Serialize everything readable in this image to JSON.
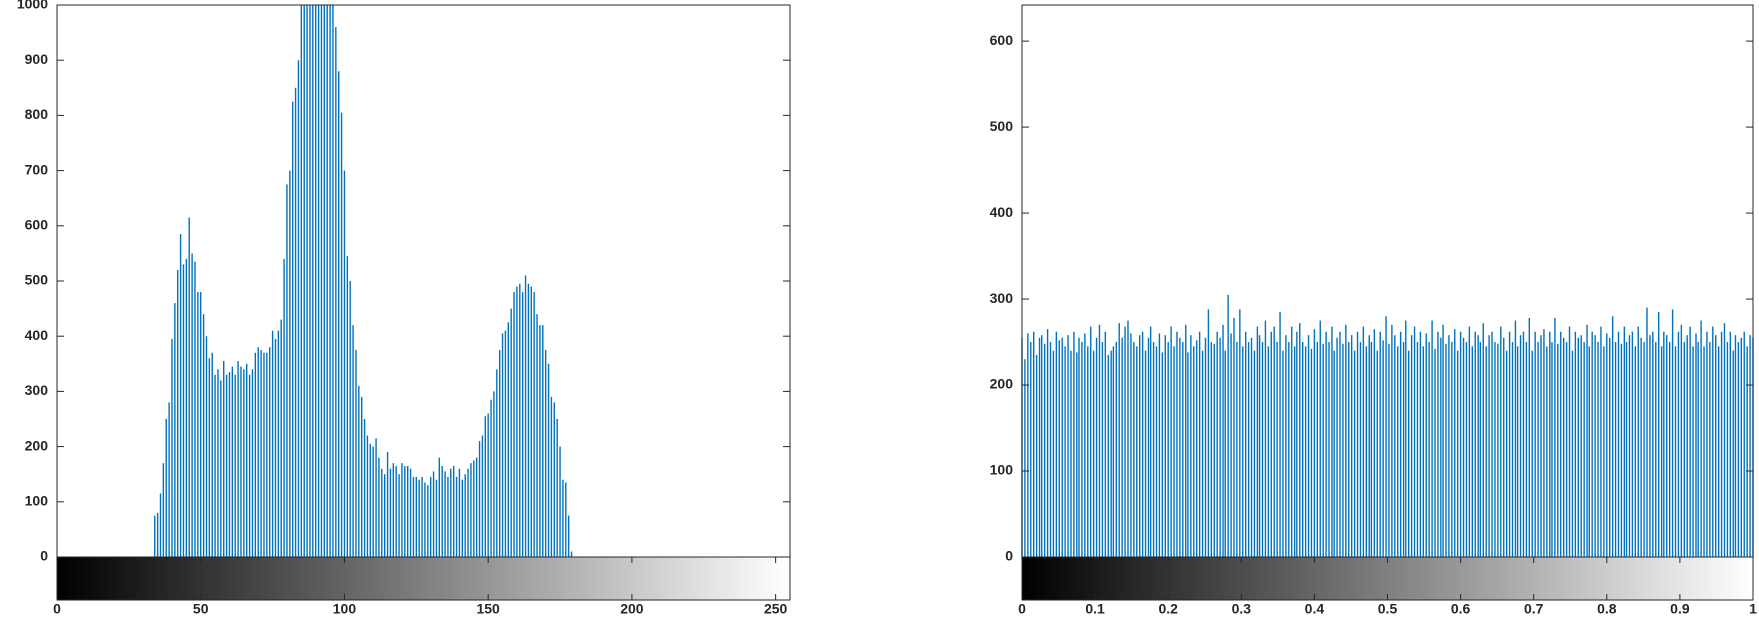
{
  "chart_data": [
    {
      "type": "bar",
      "color": "#0072bd",
      "colorbar": true,
      "xlim": [
        0,
        255
      ],
      "ylim": [
        0,
        1000
      ],
      "xticks": [
        0,
        50,
        100,
        150,
        200,
        250
      ],
      "yticks": [
        0,
        100,
        200,
        300,
        400,
        500,
        600,
        700,
        800,
        900,
        1000
      ],
      "x": [
        0,
        1,
        2,
        3,
        4,
        5,
        6,
        7,
        8,
        9,
        10,
        11,
        12,
        13,
        14,
        15,
        16,
        17,
        18,
        19,
        20,
        21,
        22,
        23,
        24,
        25,
        26,
        27,
        28,
        29,
        30,
        31,
        32,
        33,
        34,
        35,
        36,
        37,
        38,
        39,
        40,
        41,
        42,
        43,
        44,
        45,
        46,
        47,
        48,
        49,
        50,
        51,
        52,
        53,
        54,
        55,
        56,
        57,
        58,
        59,
        60,
        61,
        62,
        63,
        64,
        65,
        66,
        67,
        68,
        69,
        70,
        71,
        72,
        73,
        74,
        75,
        76,
        77,
        78,
        79,
        80,
        81,
        82,
        83,
        84,
        85,
        86,
        87,
        88,
        89,
        90,
        91,
        92,
        93,
        94,
        95,
        96,
        97,
        98,
        99,
        100,
        101,
        102,
        103,
        104,
        105,
        106,
        107,
        108,
        109,
        110,
        111,
        112,
        113,
        114,
        115,
        116,
        117,
        118,
        119,
        120,
        121,
        122,
        123,
        124,
        125,
        126,
        127,
        128,
        129,
        130,
        131,
        132,
        133,
        134,
        135,
        136,
        137,
        138,
        139,
        140,
        141,
        142,
        143,
        144,
        145,
        146,
        147,
        148,
        149,
        150,
        151,
        152,
        153,
        154,
        155,
        156,
        157,
        158,
        159,
        160,
        161,
        162,
        163,
        164,
        165,
        166,
        167,
        168,
        169,
        170,
        171,
        172,
        173,
        174,
        175,
        176,
        177,
        178,
        179,
        180,
        181,
        182,
        183,
        184,
        185,
        186,
        187,
        188,
        189,
        190,
        191,
        192,
        193,
        194,
        195,
        196,
        197,
        198,
        199,
        200,
        201,
        202,
        203,
        204,
        205,
        206,
        207,
        208,
        209,
        210,
        211,
        212,
        213,
        214,
        215,
        216,
        217,
        218,
        219,
        220,
        221,
        222,
        223,
        224,
        225,
        226,
        227,
        228,
        229,
        230,
        231,
        232,
        233,
        234,
        235,
        236,
        237,
        238,
        239,
        240,
        241,
        242,
        243,
        244,
        245,
        246,
        247,
        248,
        249,
        250,
        251,
        252,
        253,
        254,
        255
      ],
      "values": [
        0,
        0,
        0,
        0,
        0,
        0,
        0,
        0,
        0,
        0,
        0,
        0,
        0,
        0,
        0,
        0,
        0,
        0,
        0,
        0,
        0,
        0,
        0,
        0,
        0,
        0,
        0,
        0,
        0,
        0,
        0,
        0,
        0,
        0,
        75,
        80,
        115,
        170,
        250,
        280,
        395,
        460,
        520,
        585,
        530,
        540,
        615,
        550,
        535,
        480,
        480,
        440,
        400,
        360,
        370,
        330,
        340,
        320,
        355,
        330,
        335,
        345,
        330,
        355,
        345,
        340,
        350,
        330,
        340,
        370,
        380,
        375,
        370,
        370,
        380,
        410,
        395,
        410,
        430,
        540,
        675,
        700,
        825,
        850,
        900,
        1000,
        1000,
        1000,
        1000,
        1000,
        1000,
        1000,
        1000,
        1000,
        1000,
        1000,
        1000,
        960,
        880,
        805,
        700,
        545,
        500,
        420,
        375,
        310,
        290,
        250,
        220,
        205,
        200,
        215,
        180,
        160,
        150,
        190,
        160,
        170,
        165,
        150,
        170,
        165,
        165,
        160,
        145,
        145,
        140,
        145,
        135,
        130,
        145,
        155,
        140,
        180,
        165,
        155,
        145,
        160,
        165,
        145,
        160,
        140,
        150,
        160,
        170,
        175,
        180,
        210,
        220,
        255,
        260,
        285,
        300,
        340,
        375,
        405,
        410,
        425,
        450,
        480,
        490,
        495,
        480,
        510,
        495,
        490,
        480,
        440,
        420,
        420,
        375,
        350,
        290,
        280,
        250,
        200,
        140,
        135,
        75,
        10,
        0,
        0,
        0,
        0,
        0,
        0,
        0,
        0,
        0,
        0,
        0,
        0,
        0,
        0,
        0,
        0,
        0,
        0,
        0,
        0,
        0,
        0,
        0,
        0,
        0,
        0,
        0,
        0,
        0,
        0,
        0,
        0,
        0,
        0,
        0,
        0,
        0,
        0,
        0,
        0,
        0,
        0,
        0,
        0,
        0,
        0,
        0,
        0,
        0,
        0,
        0,
        0,
        0,
        0,
        0,
        0,
        0,
        0,
        0,
        0,
        0,
        0,
        0,
        0,
        0,
        0,
        0,
        0,
        0,
        0,
        0,
        0,
        0,
        0,
        0,
        0
      ]
    },
    {
      "type": "bar",
      "color": "#0072bd",
      "colorbar": true,
      "xlim": [
        0,
        1
      ],
      "ylim": [
        0,
        642
      ],
      "xticks": [
        0,
        0.1,
        0.2,
        0.3,
        0.4,
        0.5,
        0.6,
        0.7,
        0.8,
        0.9,
        1
      ],
      "yticks": [
        0,
        100,
        200,
        300,
        400,
        500,
        600
      ],
      "x": [
        0,
        0.004,
        0.008,
        0.012,
        0.016,
        0.02,
        0.024,
        0.027,
        0.031,
        0.035,
        0.039,
        0.043,
        0.047,
        0.051,
        0.055,
        0.059,
        0.063,
        0.067,
        0.071,
        0.075,
        0.078,
        0.082,
        0.086,
        0.09,
        0.094,
        0.098,
        0.102,
        0.106,
        0.11,
        0.114,
        0.118,
        0.122,
        0.125,
        0.129,
        0.133,
        0.137,
        0.141,
        0.145,
        0.149,
        0.153,
        0.157,
        0.161,
        0.165,
        0.169,
        0.173,
        0.176,
        0.18,
        0.184,
        0.188,
        0.192,
        0.196,
        0.2,
        0.204,
        0.208,
        0.212,
        0.216,
        0.22,
        0.224,
        0.227,
        0.231,
        0.235,
        0.239,
        0.243,
        0.247,
        0.251,
        0.255,
        0.259,
        0.263,
        0.267,
        0.271,
        0.275,
        0.278,
        0.282,
        0.286,
        0.29,
        0.294,
        0.298,
        0.302,
        0.306,
        0.31,
        0.314,
        0.318,
        0.322,
        0.325,
        0.329,
        0.333,
        0.337,
        0.341,
        0.345,
        0.349,
        0.353,
        0.357,
        0.361,
        0.365,
        0.369,
        0.373,
        0.376,
        0.38,
        0.384,
        0.388,
        0.392,
        0.396,
        0.4,
        0.404,
        0.408,
        0.412,
        0.416,
        0.42,
        0.424,
        0.427,
        0.431,
        0.435,
        0.439,
        0.443,
        0.447,
        0.451,
        0.455,
        0.459,
        0.463,
        0.467,
        0.471,
        0.475,
        0.478,
        0.482,
        0.486,
        0.49,
        0.494,
        0.498,
        0.502,
        0.506,
        0.51,
        0.514,
        0.518,
        0.522,
        0.525,
        0.529,
        0.533,
        0.537,
        0.541,
        0.545,
        0.549,
        0.553,
        0.557,
        0.561,
        0.565,
        0.569,
        0.573,
        0.576,
        0.58,
        0.584,
        0.588,
        0.592,
        0.596,
        0.6,
        0.604,
        0.608,
        0.612,
        0.616,
        0.62,
        0.624,
        0.627,
        0.631,
        0.635,
        0.639,
        0.643,
        0.647,
        0.651,
        0.655,
        0.659,
        0.663,
        0.667,
        0.671,
        0.675,
        0.678,
        0.682,
        0.686,
        0.69,
        0.694,
        0.698,
        0.702,
        0.706,
        0.71,
        0.714,
        0.718,
        0.722,
        0.725,
        0.729,
        0.733,
        0.737,
        0.741,
        0.745,
        0.749,
        0.753,
        0.757,
        0.761,
        0.765,
        0.769,
        0.773,
        0.776,
        0.78,
        0.784,
        0.788,
        0.792,
        0.796,
        0.8,
        0.804,
        0.808,
        0.812,
        0.816,
        0.82,
        0.824,
        0.827,
        0.831,
        0.835,
        0.839,
        0.843,
        0.847,
        0.851,
        0.855,
        0.859,
        0.863,
        0.867,
        0.871,
        0.875,
        0.878,
        0.882,
        0.886,
        0.89,
        0.894,
        0.898,
        0.902,
        0.906,
        0.91,
        0.914,
        0.918,
        0.922,
        0.925,
        0.929,
        0.933,
        0.937,
        0.941,
        0.945,
        0.949,
        0.953,
        0.957,
        0.961,
        0.965,
        0.969,
        0.973,
        0.976,
        0.98,
        0.984,
        0.988,
        0.992,
        0.996,
        1
      ],
      "values": [
        255,
        230,
        260,
        250,
        262,
        235,
        255,
        258,
        248,
        265,
        250,
        240,
        262,
        252,
        255,
        245,
        258,
        240,
        262,
        238,
        255,
        250,
        260,
        245,
        268,
        240,
        255,
        270,
        250,
        262,
        235,
        240,
        245,
        250,
        272,
        255,
        268,
        275,
        260,
        250,
        245,
        258,
        262,
        240,
        255,
        268,
        250,
        245,
        260,
        238,
        258,
        250,
        268,
        245,
        262,
        255,
        250,
        270,
        238,
        258,
        245,
        252,
        262,
        240,
        255,
        288,
        250,
        248,
        262,
        255,
        270,
        240,
        305,
        260,
        278,
        250,
        288,
        245,
        262,
        250,
        255,
        240,
        268,
        258,
        250,
        275,
        245,
        262,
        268,
        250,
        285,
        240,
        258,
        250,
        268,
        245,
        262,
        272,
        250,
        245,
        258,
        242,
        265,
        250,
        275,
        248,
        262,
        250,
        268,
        240,
        255,
        262,
        248,
        270,
        250,
        258,
        240,
        262,
        250,
        268,
        245,
        258,
        250,
        265,
        240,
        262,
        252,
        280,
        248,
        270,
        258,
        245,
        262,
        250,
        275,
        240,
        258,
        268,
        250,
        262,
        245,
        260,
        250,
        275,
        242,
        262,
        255,
        270,
        248,
        258,
        250,
        265,
        240,
        262,
        255,
        250,
        268,
        245,
        262,
        258,
        250,
        272,
        245,
        258,
        262,
        250,
        248,
        268,
        255,
        240,
        262,
        250,
        275,
        245,
        258,
        262,
        250,
        278,
        240,
        262,
        250,
        258,
        265,
        245,
        262,
        250,
        278,
        248,
        262,
        255,
        250,
        268,
        240,
        262,
        255,
        258,
        250,
        270,
        245,
        262,
        258,
        250,
        268,
        245,
        260,
        255,
        280,
        250,
        262,
        248,
        268,
        250,
        258,
        262,
        245,
        268,
        255,
        250,
        290,
        258,
        262,
        250,
        285,
        245,
        262,
        258,
        250,
        288,
        245,
        262,
        270,
        250,
        258,
        268,
        245,
        260,
        250,
        275,
        245,
        262,
        250,
        268,
        258,
        245,
        262,
        272,
        250,
        262,
        240,
        258,
        250,
        255,
        262,
        245,
        258,
        255
      ]
    }
  ]
}
